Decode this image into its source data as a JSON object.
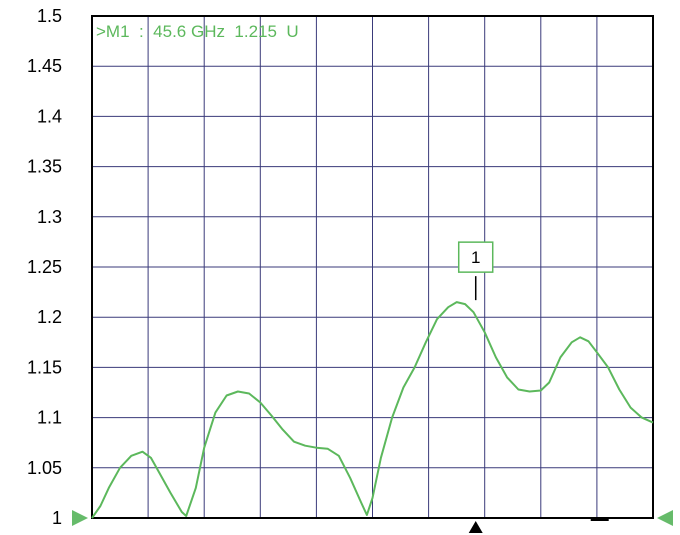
{
  "chart_data": {
    "type": "line",
    "title": "",
    "xlabel": "",
    "ylabel": "",
    "ylim": [
      1,
      1.5
    ],
    "yticks": [
      "1.5",
      "1.45",
      "1.4",
      "1.35",
      "1.3",
      "1.25",
      "1.2",
      "1.15",
      "1.1",
      "1.05",
      "1"
    ],
    "grid": true,
    "grid_divisions_x": 10,
    "colors": {
      "trace": "#5cb85c",
      "grid": "#3a3a7a",
      "border": "#000000",
      "marker_box": "#5cb85c",
      "reference_arrow": "#66bb6a"
    },
    "marker": {
      "id": "1",
      "readout": ">M1  :  45.6 GHz  1.215  U",
      "x_fraction": 0.684,
      "y": 1.215
    },
    "series": [
      {
        "values": [
          [
            0.0,
            1.0
          ],
          [
            0.015,
            1.012
          ],
          [
            0.03,
            1.03
          ],
          [
            0.05,
            1.05
          ],
          [
            0.07,
            1.062
          ],
          [
            0.09,
            1.066
          ],
          [
            0.105,
            1.06
          ],
          [
            0.12,
            1.045
          ],
          [
            0.14,
            1.025
          ],
          [
            0.16,
            1.006
          ],
          [
            0.168,
            1.002
          ],
          [
            0.185,
            1.03
          ],
          [
            0.2,
            1.07
          ],
          [
            0.22,
            1.105
          ],
          [
            0.24,
            1.122
          ],
          [
            0.26,
            1.126
          ],
          [
            0.28,
            1.124
          ],
          [
            0.3,
            1.115
          ],
          [
            0.32,
            1.102
          ],
          [
            0.34,
            1.088
          ],
          [
            0.36,
            1.076
          ],
          [
            0.38,
            1.072
          ],
          [
            0.4,
            1.07
          ],
          [
            0.42,
            1.069
          ],
          [
            0.44,
            1.062
          ],
          [
            0.46,
            1.04
          ],
          [
            0.48,
            1.015
          ],
          [
            0.49,
            1.003
          ],
          [
            0.5,
            1.02
          ],
          [
            0.515,
            1.06
          ],
          [
            0.535,
            1.1
          ],
          [
            0.555,
            1.13
          ],
          [
            0.575,
            1.15
          ],
          [
            0.595,
            1.175
          ],
          [
            0.615,
            1.198
          ],
          [
            0.635,
            1.21
          ],
          [
            0.65,
            1.215
          ],
          [
            0.665,
            1.213
          ],
          [
            0.68,
            1.205
          ],
          [
            0.7,
            1.185
          ],
          [
            0.72,
            1.16
          ],
          [
            0.74,
            1.14
          ],
          [
            0.76,
            1.128
          ],
          [
            0.78,
            1.126
          ],
          [
            0.8,
            1.127
          ],
          [
            0.815,
            1.135
          ],
          [
            0.835,
            1.16
          ],
          [
            0.855,
            1.175
          ],
          [
            0.87,
            1.18
          ],
          [
            0.885,
            1.176
          ],
          [
            0.9,
            1.165
          ],
          [
            0.92,
            1.15
          ],
          [
            0.94,
            1.128
          ],
          [
            0.96,
            1.11
          ],
          [
            0.98,
            1.1
          ],
          [
            1.0,
            1.095
          ]
        ]
      }
    ]
  }
}
